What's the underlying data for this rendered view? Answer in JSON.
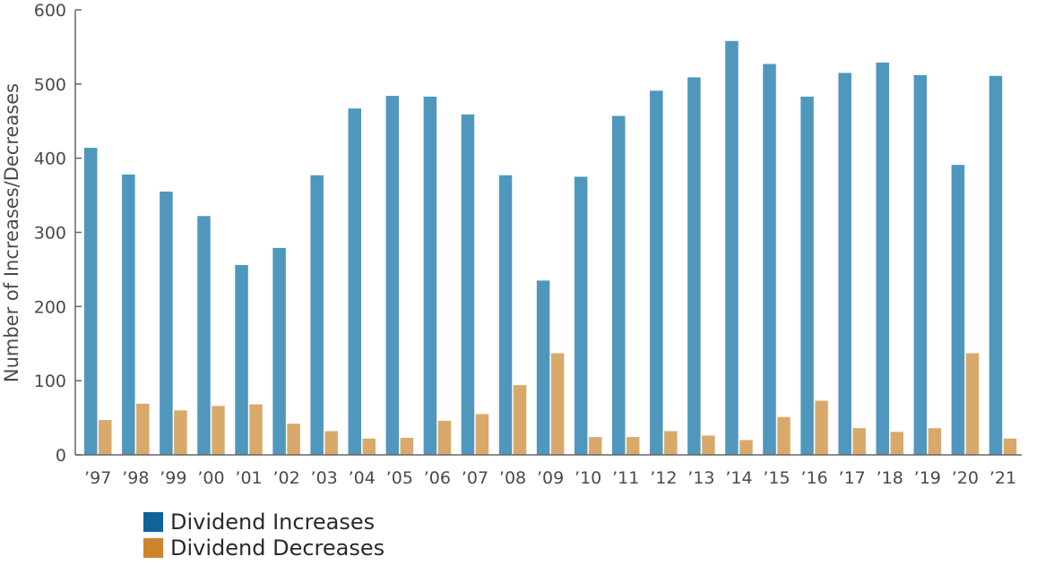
{
  "chart_data": {
    "type": "bar",
    "ylabel": "Number of Increases/Decreases",
    "ylim": [
      0,
      600
    ],
    "yticks": [
      0,
      100,
      200,
      300,
      400,
      500,
      600
    ],
    "categories": [
      "’97",
      "’98",
      "’99",
      "’00",
      "’01",
      "’02",
      "’03",
      "’04",
      "’05",
      "’06",
      "’07",
      "’08",
      "’09",
      "’10",
      "’11",
      "’12",
      "’13",
      "’14",
      "’15",
      "’16",
      "’17",
      "’18",
      "’19",
      "’20",
      "’21"
    ],
    "series": [
      {
        "name": "Dividend Increases",
        "values": [
          414,
          378,
          355,
          322,
          256,
          279,
          377,
          467,
          484,
          483,
          459,
          377,
          235,
          375,
          457,
          491,
          509,
          558,
          527,
          483,
          515,
          529,
          512,
          391,
          511
        ]
      },
      {
        "name": "Dividend Decreases",
        "values": [
          47,
          69,
          60,
          66,
          68,
          42,
          32,
          22,
          23,
          46,
          55,
          94,
          137,
          24,
          24,
          32,
          26,
          20,
          51,
          73,
          36,
          31,
          36,
          137,
          22
        ]
      }
    ],
    "legend_position": "bottom-left",
    "grid": false
  },
  "colors": {
    "increase_bar": "#4f97bd",
    "decrease_bar": "#d9a96b",
    "increase_swatch": "#0f629a",
    "decrease_swatch": "#cf832b",
    "axis": "#666666"
  }
}
